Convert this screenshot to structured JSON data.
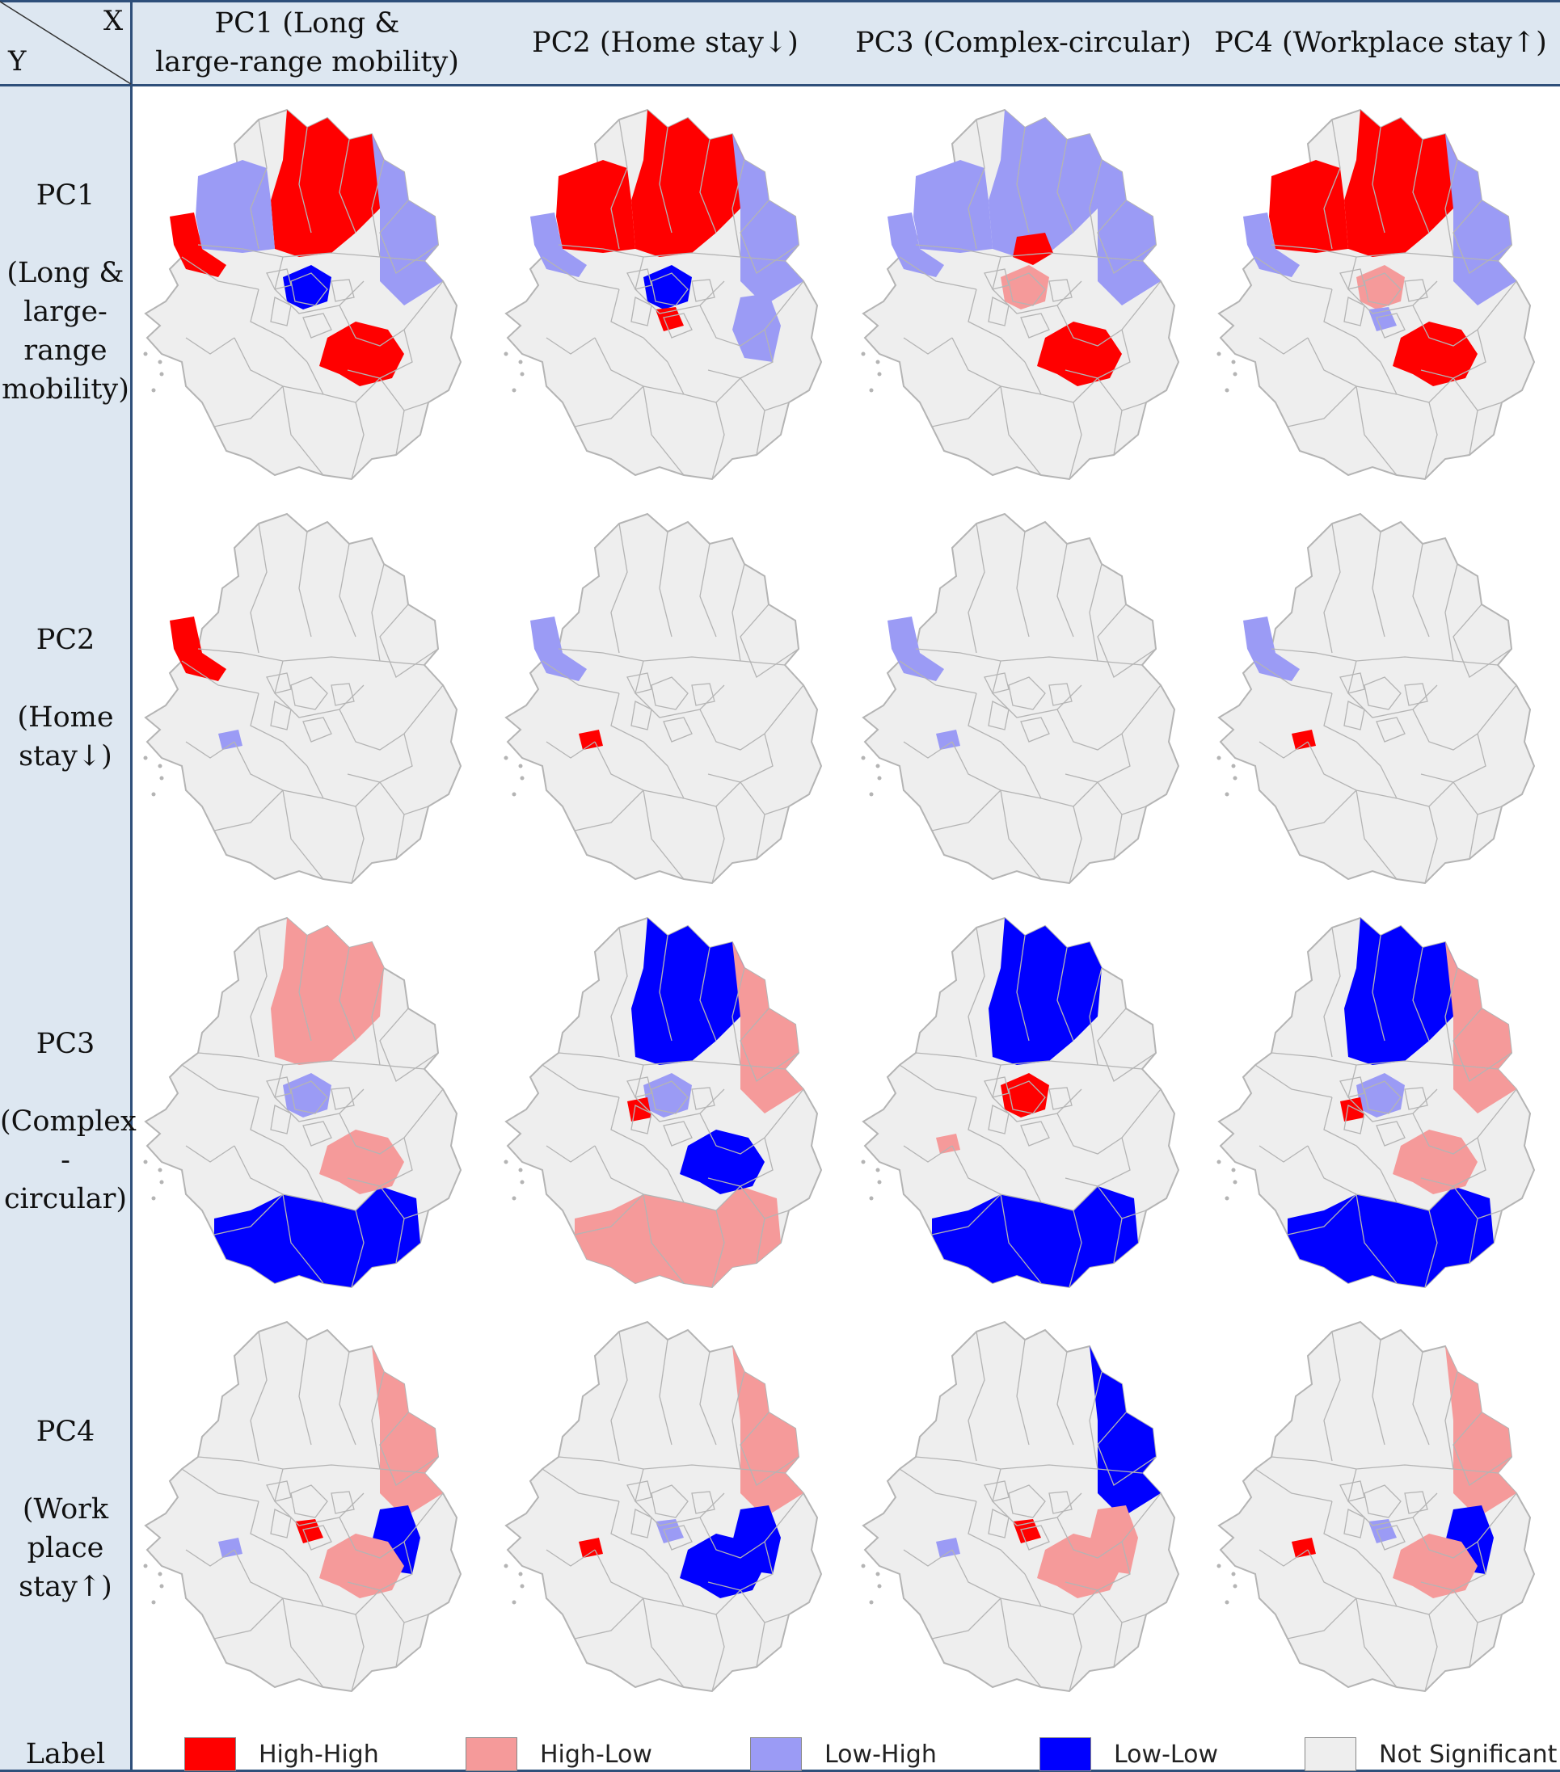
{
  "header": {
    "x_label": "X",
    "y_label": "Y",
    "columns": [
      {
        "line1": "PC1 (Long &",
        "line2": "large-range mobility)"
      },
      {
        "line1": "PC2 (Home stay↓)",
        "line2": ""
      },
      {
        "line1": "PC3 (Complex-circular)",
        "line2": ""
      },
      {
        "line1": "PC4 (Workplace stay↑)",
        "line2": ""
      }
    ]
  },
  "rows": [
    {
      "lines": [
        "PC1",
        "",
        "(Long &",
        "large-",
        "range",
        "mobility)"
      ]
    },
    {
      "lines": [
        "PC2",
        "",
        "(Home",
        "stay↓)"
      ]
    },
    {
      "lines": [
        "PC3",
        "",
        "(Complex",
        "-circular)"
      ]
    },
    {
      "lines": [
        "PC4",
        "",
        "(Work",
        "place",
        "stay↑)"
      ]
    }
  ],
  "legend": {
    "title": "Label",
    "items": [
      {
        "label": "High-High",
        "color": "#ff0000"
      },
      {
        "label": "High-Low",
        "color": "#f59a9a"
      },
      {
        "label": "Low-High",
        "color": "#9b9bf5"
      },
      {
        "label": "Low-Low",
        "color": "#0000ff"
      },
      {
        "label": "Not Significant",
        "color": "#eeeeee"
      }
    ]
  },
  "colors": {
    "high_high": "#ff0000",
    "high_low": "#f59a9a",
    "low_high": "#9b9bf5",
    "low_low": "#0000ff",
    "not_significant": "#eeeeee",
    "boundary": "#b4b4b4",
    "header_bg": "#dde7f1",
    "rule": "#2e4f7a"
  },
  "maps": [
    {
      "row": 1,
      "col": 1,
      "regions": [
        {
          "shape": "N",
          "class": "high_high"
        },
        {
          "shape": "NW",
          "class": "low_high"
        },
        {
          "shape": "NE",
          "class": "low_high"
        },
        {
          "shape": "W",
          "class": "high_high"
        },
        {
          "shape": "C",
          "class": "low_low"
        },
        {
          "shape": "SE",
          "class": "high_high"
        }
      ]
    },
    {
      "row": 1,
      "col": 2,
      "regions": [
        {
          "shape": "N",
          "class": "high_high"
        },
        {
          "shape": "NW",
          "class": "high_high"
        },
        {
          "shape": "NE",
          "class": "low_high"
        },
        {
          "shape": "W",
          "class": "low_high"
        },
        {
          "shape": "C",
          "class": "low_low"
        },
        {
          "shape": "CS",
          "class": "high_high"
        },
        {
          "shape": "E",
          "class": "low_high"
        }
      ]
    },
    {
      "row": 1,
      "col": 3,
      "regions": [
        {
          "shape": "N",
          "class": "low_high"
        },
        {
          "shape": "NW",
          "class": "low_high"
        },
        {
          "shape": "NE",
          "class": "low_high"
        },
        {
          "shape": "W",
          "class": "low_high"
        },
        {
          "shape": "CN",
          "class": "high_high"
        },
        {
          "shape": "C",
          "class": "high_low"
        },
        {
          "shape": "SE",
          "class": "high_high"
        }
      ]
    },
    {
      "row": 1,
      "col": 4,
      "regions": [
        {
          "shape": "N",
          "class": "high_high"
        },
        {
          "shape": "NW",
          "class": "high_high"
        },
        {
          "shape": "NE",
          "class": "low_high"
        },
        {
          "shape": "W",
          "class": "low_high"
        },
        {
          "shape": "C",
          "class": "high_low"
        },
        {
          "shape": "SE",
          "class": "high_high"
        },
        {
          "shape": "CS",
          "class": "low_high"
        }
      ]
    },
    {
      "row": 2,
      "col": 1,
      "regions": [
        {
          "shape": "W",
          "class": "high_high"
        },
        {
          "shape": "SW",
          "class": "low_high"
        }
      ]
    },
    {
      "row": 2,
      "col": 2,
      "regions": [
        {
          "shape": "W",
          "class": "low_high"
        },
        {
          "shape": "SW",
          "class": "high_high"
        }
      ]
    },
    {
      "row": 2,
      "col": 3,
      "regions": [
        {
          "shape": "W",
          "class": "low_high"
        },
        {
          "shape": "SW",
          "class": "low_high"
        }
      ]
    },
    {
      "row": 2,
      "col": 4,
      "regions": [
        {
          "shape": "W",
          "class": "low_high"
        },
        {
          "shape": "SW",
          "class": "high_high"
        }
      ]
    },
    {
      "row": 3,
      "col": 1,
      "regions": [
        {
          "shape": "N",
          "class": "high_low"
        },
        {
          "shape": "C",
          "class": "low_high"
        },
        {
          "shape": "S",
          "class": "low_low"
        },
        {
          "shape": "SE",
          "class": "high_low"
        }
      ]
    },
    {
      "row": 3,
      "col": 2,
      "regions": [
        {
          "shape": "N",
          "class": "low_low"
        },
        {
          "shape": "NE",
          "class": "high_low"
        },
        {
          "shape": "C",
          "class": "low_high"
        },
        {
          "shape": "CW",
          "class": "high_high"
        },
        {
          "shape": "S",
          "class": "high_low"
        },
        {
          "shape": "SE",
          "class": "low_low"
        }
      ]
    },
    {
      "row": 3,
      "col": 3,
      "regions": [
        {
          "shape": "N",
          "class": "low_low"
        },
        {
          "shape": "C",
          "class": "high_high"
        },
        {
          "shape": "S",
          "class": "low_low"
        },
        {
          "shape": "SW",
          "class": "high_low"
        }
      ]
    },
    {
      "row": 3,
      "col": 4,
      "regions": [
        {
          "shape": "N",
          "class": "low_low"
        },
        {
          "shape": "NE",
          "class": "high_low"
        },
        {
          "shape": "C",
          "class": "low_high"
        },
        {
          "shape": "CW",
          "class": "high_high"
        },
        {
          "shape": "S",
          "class": "low_low"
        },
        {
          "shape": "SE",
          "class": "high_low"
        }
      ]
    },
    {
      "row": 4,
      "col": 1,
      "regions": [
        {
          "shape": "NE",
          "class": "high_low"
        },
        {
          "shape": "E",
          "class": "low_low"
        },
        {
          "shape": "SE",
          "class": "high_low"
        },
        {
          "shape": "SW",
          "class": "low_high"
        },
        {
          "shape": "CS",
          "class": "high_high"
        }
      ]
    },
    {
      "row": 4,
      "col": 2,
      "regions": [
        {
          "shape": "NE",
          "class": "high_low"
        },
        {
          "shape": "E",
          "class": "low_low"
        },
        {
          "shape": "SE",
          "class": "low_low"
        },
        {
          "shape": "SW",
          "class": "high_high"
        },
        {
          "shape": "CS",
          "class": "low_high"
        }
      ]
    },
    {
      "row": 4,
      "col": 3,
      "regions": [
        {
          "shape": "NE",
          "class": "low_low"
        },
        {
          "shape": "E",
          "class": "high_low"
        },
        {
          "shape": "SE",
          "class": "high_low"
        },
        {
          "shape": "SW",
          "class": "low_high"
        },
        {
          "shape": "CS",
          "class": "high_high"
        }
      ]
    },
    {
      "row": 4,
      "col": 4,
      "regions": [
        {
          "shape": "NE",
          "class": "high_low"
        },
        {
          "shape": "E",
          "class": "low_low"
        },
        {
          "shape": "SE",
          "class": "high_low"
        },
        {
          "shape": "SW",
          "class": "high_high"
        },
        {
          "shape": "CS",
          "class": "low_high"
        }
      ]
    }
  ]
}
